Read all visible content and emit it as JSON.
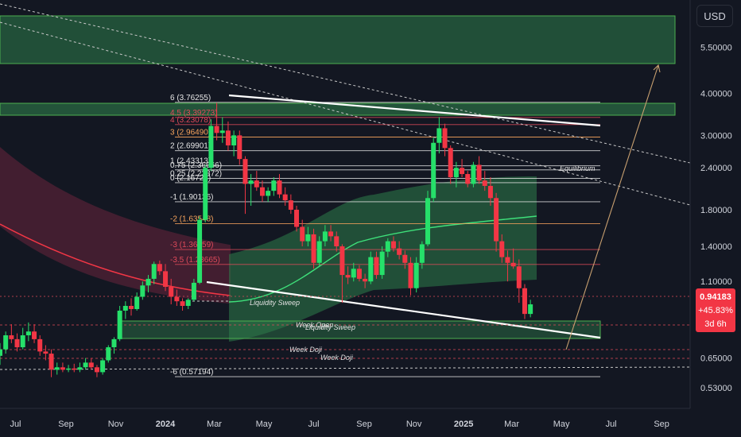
{
  "currency_button": "USD",
  "colors": {
    "background": "#131722",
    "axis_text": "#d1d4dc",
    "up": "#26e06a",
    "down": "#f23645",
    "zone_green": "#2e7d4b",
    "zone_red": "#9c2a4b",
    "fib_orange": "#f7a35c",
    "fib_red": "#e04a5a",
    "fib_white": "#e6e6e6",
    "current_price_bg": "#f23645"
  },
  "price_tag": {
    "price": "0.94183",
    "change": "+45.83%",
    "countdown": "3d 6h"
  },
  "annotations": {
    "equilibrium": "Equilibrium",
    "liquidity_sweep_1": "Liquidity Sweep",
    "liquidity_sweep_2": "Liquidity Sweep",
    "week_open": "Week Open",
    "week_doji_1": "Week Doji",
    "week_doji_2": "Week Doji"
  },
  "chart_data": {
    "type": "candlestick",
    "y_scale": "log",
    "ylim": [
      0.46,
      7.6
    ],
    "xlim": [
      "2023-06-12",
      "2025-10-06"
    ],
    "y_ticks": [
      {
        "label": "5.50000",
        "value": 5.5
      },
      {
        "label": "4.00000",
        "value": 4.0
      },
      {
        "label": "3.00000",
        "value": 3.0
      },
      {
        "label": "2.40000",
        "value": 2.4
      },
      {
        "label": "1.80000",
        "value": 1.8
      },
      {
        "label": "1.40000",
        "value": 1.4
      },
      {
        "label": "1.10000",
        "value": 1.1
      },
      {
        "label": "0.65000",
        "value": 0.65
      },
      {
        "label": "0.53000",
        "value": 0.53
      }
    ],
    "x_ticks": [
      {
        "label": "Jul",
        "date": "2023-07-01",
        "bold": false
      },
      {
        "label": "Sep",
        "date": "2023-09-01",
        "bold": false
      },
      {
        "label": "Nov",
        "date": "2023-11-01",
        "bold": false
      },
      {
        "label": "2024",
        "date": "2024-01-01",
        "bold": true
      },
      {
        "label": "Mar",
        "date": "2024-03-01",
        "bold": false
      },
      {
        "label": "May",
        "date": "2024-05-01",
        "bold": false
      },
      {
        "label": "Jul",
        "date": "2024-07-01",
        "bold": false
      },
      {
        "label": "Sep",
        "date": "2024-09-01",
        "bold": false
      },
      {
        "label": "Nov",
        "date": "2024-11-01",
        "bold": false
      },
      {
        "label": "2025",
        "date": "2025-01-01",
        "bold": true
      },
      {
        "label": "Mar",
        "date": "2025-03-01",
        "bold": false
      },
      {
        "label": "May",
        "date": "2025-05-01",
        "bold": false
      },
      {
        "label": "Jul",
        "date": "2025-07-01",
        "bold": false
      },
      {
        "label": "Sep",
        "date": "2025-09-01",
        "bold": false
      }
    ],
    "fib_levels": [
      {
        "label": "6 (3.76255)",
        "value": 3.76255,
        "color": "white"
      },
      {
        "label": "4.5 (3.39273)",
        "value": 3.39273,
        "color": "red"
      },
      {
        "label": "4 (3.23078)",
        "value": 3.23078,
        "color": "red"
      },
      {
        "label": "3 (2.96490)",
        "value": 2.9649,
        "color": "orange"
      },
      {
        "label": "2 (2.69901)",
        "value": 2.69901,
        "color": "white"
      },
      {
        "label": "1 (2.43313)",
        "value": 2.43313,
        "color": "white"
      },
      {
        "label": "0.75 (2.36666)",
        "value": 2.36666,
        "color": "white"
      },
      {
        "label": "0.25 (2.23372)",
        "value": 2.23372,
        "color": "white"
      },
      {
        "label": "0 (2.16724)",
        "value": 2.16724,
        "color": "white"
      },
      {
        "label": "-1 (1.90136)",
        "value": 1.90136,
        "color": "white"
      },
      {
        "label": "-2 (1.63548)",
        "value": 1.63548,
        "color": "orange"
      },
      {
        "label": "-3 (1.36959)",
        "value": 1.36959,
        "color": "red"
      },
      {
        "label": "-3.5 (1.23665)",
        "value": 1.23665,
        "color": "red"
      },
      {
        "label": "-6 (0.57194)",
        "value": 0.57194,
        "color": "white"
      }
    ],
    "candles": [
      {
        "date": "2023-06-12",
        "open": 0.66,
        "high": 0.72,
        "low": 0.62,
        "close": 0.69
      },
      {
        "date": "2023-06-19",
        "open": 0.69,
        "high": 0.78,
        "low": 0.67,
        "close": 0.76
      },
      {
        "date": "2023-06-26",
        "open": 0.76,
        "high": 0.82,
        "low": 0.72,
        "close": 0.74
      },
      {
        "date": "2023-07-03",
        "open": 0.74,
        "high": 0.77,
        "low": 0.68,
        "close": 0.7
      },
      {
        "date": "2023-07-10",
        "open": 0.7,
        "high": 0.8,
        "low": 0.69,
        "close": 0.76
      },
      {
        "date": "2023-07-17",
        "open": 0.76,
        "high": 0.83,
        "low": 0.73,
        "close": 0.78
      },
      {
        "date": "2023-07-24",
        "open": 0.78,
        "high": 0.82,
        "low": 0.72,
        "close": 0.74
      },
      {
        "date": "2023-07-31",
        "open": 0.74,
        "high": 0.76,
        "low": 0.66,
        "close": 0.68
      },
      {
        "date": "2023-08-07",
        "open": 0.68,
        "high": 0.71,
        "low": 0.64,
        "close": 0.67
      },
      {
        "date": "2023-08-14",
        "open": 0.67,
        "high": 0.69,
        "low": 0.57,
        "close": 0.6
      },
      {
        "date": "2023-08-21",
        "open": 0.6,
        "high": 0.63,
        "low": 0.58,
        "close": 0.61
      },
      {
        "date": "2023-08-28",
        "open": 0.61,
        "high": 0.63,
        "low": 0.59,
        "close": 0.6
      },
      {
        "date": "2023-09-04",
        "open": 0.6,
        "high": 0.62,
        "low": 0.59,
        "close": 0.605
      },
      {
        "date": "2023-09-11",
        "open": 0.605,
        "high": 0.625,
        "low": 0.59,
        "close": 0.6
      },
      {
        "date": "2023-09-18",
        "open": 0.6,
        "high": 0.63,
        "low": 0.59,
        "close": 0.61
      },
      {
        "date": "2023-09-25",
        "open": 0.61,
        "high": 0.65,
        "low": 0.6,
        "close": 0.63
      },
      {
        "date": "2023-10-02",
        "open": 0.63,
        "high": 0.65,
        "low": 0.6,
        "close": 0.61
      },
      {
        "date": "2023-10-09",
        "open": 0.61,
        "high": 0.62,
        "low": 0.57,
        "close": 0.59
      },
      {
        "date": "2023-10-16",
        "open": 0.59,
        "high": 0.65,
        "low": 0.58,
        "close": 0.64
      },
      {
        "date": "2023-10-23",
        "open": 0.64,
        "high": 0.71,
        "low": 0.63,
        "close": 0.7
      },
      {
        "date": "2023-10-30",
        "open": 0.7,
        "high": 0.75,
        "low": 0.67,
        "close": 0.74
      },
      {
        "date": "2023-11-06",
        "open": 0.74,
        "high": 0.93,
        "low": 0.73,
        "close": 0.9
      },
      {
        "date": "2023-11-13",
        "open": 0.9,
        "high": 0.96,
        "low": 0.85,
        "close": 0.93
      },
      {
        "date": "2023-11-20",
        "open": 0.93,
        "high": 0.98,
        "low": 0.87,
        "close": 0.91
      },
      {
        "date": "2023-11-27",
        "open": 0.91,
        "high": 1.02,
        "low": 0.9,
        "close": 0.99
      },
      {
        "date": "2023-12-04",
        "open": 0.99,
        "high": 1.1,
        "low": 0.97,
        "close": 1.07
      },
      {
        "date": "2023-12-11",
        "open": 1.07,
        "high": 1.15,
        "low": 1.02,
        "close": 1.12
      },
      {
        "date": "2023-12-18",
        "open": 1.12,
        "high": 1.26,
        "low": 1.08,
        "close": 1.24
      },
      {
        "date": "2023-12-25",
        "open": 1.24,
        "high": 1.27,
        "low": 1.15,
        "close": 1.18
      },
      {
        "date": "2024-01-01",
        "open": 1.18,
        "high": 1.24,
        "low": 1.03,
        "close": 1.06
      },
      {
        "date": "2024-01-08",
        "open": 1.06,
        "high": 1.12,
        "low": 0.94,
        "close": 0.99
      },
      {
        "date": "2024-01-15",
        "open": 0.99,
        "high": 1.04,
        "low": 0.93,
        "close": 0.96
      },
      {
        "date": "2024-01-22",
        "open": 0.96,
        "high": 0.98,
        "low": 0.9,
        "close": 0.93
      },
      {
        "date": "2024-01-29",
        "open": 0.93,
        "high": 0.98,
        "low": 0.91,
        "close": 0.97
      },
      {
        "date": "2024-02-05",
        "open": 0.97,
        "high": 1.12,
        "low": 0.96,
        "close": 1.09
      },
      {
        "date": "2024-02-12",
        "open": 1.09,
        "high": 1.72,
        "low": 1.08,
        "close": 1.68
      },
      {
        "date": "2024-02-19",
        "open": 1.68,
        "high": 2.45,
        "low": 1.65,
        "close": 2.4
      },
      {
        "date": "2024-02-26",
        "open": 2.4,
        "high": 3.35,
        "low": 2.35,
        "close": 3.2
      },
      {
        "date": "2024-03-04",
        "open": 3.2,
        "high": 3.75,
        "low": 2.9,
        "close": 3.05
      },
      {
        "date": "2024-03-11",
        "open": 3.05,
        "high": 3.4,
        "low": 2.85,
        "close": 3.1
      },
      {
        "date": "2024-03-18",
        "open": 3.1,
        "high": 3.3,
        "low": 2.7,
        "close": 2.8
      },
      {
        "date": "2024-03-25",
        "open": 2.8,
        "high": 3.1,
        "low": 2.6,
        "close": 3.0
      },
      {
        "date": "2024-04-01",
        "open": 3.0,
        "high": 3.1,
        "low": 2.45,
        "close": 2.55
      },
      {
        "date": "2024-04-08",
        "open": 2.55,
        "high": 2.6,
        "low": 1.75,
        "close": 2.15
      },
      {
        "date": "2024-04-15",
        "open": 2.15,
        "high": 2.3,
        "low": 1.85,
        "close": 2.2
      },
      {
        "date": "2024-04-22",
        "open": 2.2,
        "high": 2.35,
        "low": 2.05,
        "close": 2.1
      },
      {
        "date": "2024-04-29",
        "open": 2.1,
        "high": 2.2,
        "low": 1.9,
        "close": 1.98
      },
      {
        "date": "2024-05-06",
        "open": 1.98,
        "high": 2.1,
        "low": 1.9,
        "close": 2.05
      },
      {
        "date": "2024-05-13",
        "open": 2.05,
        "high": 2.25,
        "low": 1.98,
        "close": 2.2
      },
      {
        "date": "2024-05-20",
        "open": 2.2,
        "high": 2.3,
        "low": 1.95,
        "close": 2.0
      },
      {
        "date": "2024-05-27",
        "open": 2.0,
        "high": 2.1,
        "low": 1.85,
        "close": 1.92
      },
      {
        "date": "2024-06-03",
        "open": 1.92,
        "high": 2.0,
        "low": 1.75,
        "close": 1.8
      },
      {
        "date": "2024-06-10",
        "open": 1.8,
        "high": 1.85,
        "low": 1.55,
        "close": 1.6
      },
      {
        "date": "2024-06-17",
        "open": 1.6,
        "high": 1.68,
        "low": 1.4,
        "close": 1.45
      },
      {
        "date": "2024-06-24",
        "open": 1.45,
        "high": 1.6,
        "low": 1.4,
        "close": 1.52
      },
      {
        "date": "2024-07-01",
        "open": 1.52,
        "high": 1.58,
        "low": 1.2,
        "close": 1.25
      },
      {
        "date": "2024-07-08",
        "open": 1.25,
        "high": 1.5,
        "low": 1.22,
        "close": 1.45
      },
      {
        "date": "2024-07-15",
        "open": 1.45,
        "high": 1.62,
        "low": 1.4,
        "close": 1.55
      },
      {
        "date": "2024-07-22",
        "open": 1.55,
        "high": 1.62,
        "low": 1.45,
        "close": 1.5
      },
      {
        "date": "2024-07-29",
        "open": 1.5,
        "high": 1.55,
        "low": 1.35,
        "close": 1.4
      },
      {
        "date": "2024-08-05",
        "open": 1.4,
        "high": 1.42,
        "low": 0.95,
        "close": 1.15
      },
      {
        "date": "2024-08-12",
        "open": 1.15,
        "high": 1.22,
        "low": 1.08,
        "close": 1.13
      },
      {
        "date": "2024-08-19",
        "open": 1.13,
        "high": 1.25,
        "low": 1.1,
        "close": 1.2
      },
      {
        "date": "2024-08-26",
        "open": 1.2,
        "high": 1.23,
        "low": 1.1,
        "close": 1.12
      },
      {
        "date": "2024-09-02",
        "open": 1.12,
        "high": 1.16,
        "low": 1.05,
        "close": 1.1
      },
      {
        "date": "2024-09-09",
        "open": 1.1,
        "high": 1.35,
        "low": 1.08,
        "close": 1.3
      },
      {
        "date": "2024-09-16",
        "open": 1.3,
        "high": 1.35,
        "low": 1.12,
        "close": 1.15
      },
      {
        "date": "2024-09-23",
        "open": 1.15,
        "high": 1.4,
        "low": 1.12,
        "close": 1.35
      },
      {
        "date": "2024-09-30",
        "open": 1.35,
        "high": 1.48,
        "low": 1.3,
        "close": 1.45
      },
      {
        "date": "2024-10-07",
        "open": 1.45,
        "high": 1.5,
        "low": 1.35,
        "close": 1.38
      },
      {
        "date": "2024-10-14",
        "open": 1.38,
        "high": 1.45,
        "low": 1.28,
        "close": 1.32
      },
      {
        "date": "2024-10-21",
        "open": 1.32,
        "high": 1.36,
        "low": 1.2,
        "close": 1.25
      },
      {
        "date": "2024-10-28",
        "open": 1.25,
        "high": 1.3,
        "low": 1.0,
        "close": 1.05
      },
      {
        "date": "2024-11-04",
        "open": 1.05,
        "high": 1.3,
        "low": 1.02,
        "close": 1.25
      },
      {
        "date": "2024-11-11",
        "open": 1.25,
        "high": 1.45,
        "low": 1.2,
        "close": 1.42
      },
      {
        "date": "2024-11-18",
        "open": 1.42,
        "high": 2.05,
        "low": 1.4,
        "close": 1.95
      },
      {
        "date": "2024-11-25",
        "open": 1.95,
        "high": 2.95,
        "low": 1.9,
        "close": 2.85
      },
      {
        "date": "2024-12-02",
        "open": 2.85,
        "high": 3.4,
        "low": 2.65,
        "close": 3.15
      },
      {
        "date": "2024-12-09",
        "open": 3.15,
        "high": 3.25,
        "low": 2.6,
        "close": 2.75
      },
      {
        "date": "2024-12-16",
        "open": 2.75,
        "high": 2.8,
        "low": 2.15,
        "close": 2.25
      },
      {
        "date": "2024-12-23",
        "open": 2.25,
        "high": 2.5,
        "low": 2.1,
        "close": 2.4
      },
      {
        "date": "2024-12-30",
        "open": 2.4,
        "high": 2.55,
        "low": 2.25,
        "close": 2.3
      },
      {
        "date": "2025-01-06",
        "open": 2.3,
        "high": 2.35,
        "low": 2.1,
        "close": 2.15
      },
      {
        "date": "2025-01-13",
        "open": 2.15,
        "high": 2.5,
        "low": 2.1,
        "close": 2.45
      },
      {
        "date": "2025-01-20",
        "open": 2.45,
        "high": 2.6,
        "low": 2.15,
        "close": 2.2
      },
      {
        "date": "2025-01-27",
        "open": 2.2,
        "high": 2.35,
        "low": 2.05,
        "close": 2.12
      },
      {
        "date": "2025-02-03",
        "open": 2.12,
        "high": 2.25,
        "low": 1.85,
        "close": 1.95
      },
      {
        "date": "2025-02-10",
        "open": 1.95,
        "high": 2.02,
        "low": 1.35,
        "close": 1.45
      },
      {
        "date": "2025-02-17",
        "open": 1.45,
        "high": 1.52,
        "low": 1.25,
        "close": 1.3
      },
      {
        "date": "2025-02-24",
        "open": 1.3,
        "high": 1.36,
        "low": 1.1,
        "close": 1.25
      },
      {
        "date": "2025-03-03",
        "open": 1.25,
        "high": 1.38,
        "low": 1.2,
        "close": 1.22
      },
      {
        "date": "2025-03-10",
        "open": 1.22,
        "high": 1.28,
        "low": 0.95,
        "close": 1.05
      },
      {
        "date": "2025-03-17",
        "open": 1.05,
        "high": 1.08,
        "low": 0.85,
        "close": 0.88
      },
      {
        "date": "2025-03-24",
        "open": 0.88,
        "high": 0.97,
        "low": 0.86,
        "close": 0.94
      }
    ]
  }
}
